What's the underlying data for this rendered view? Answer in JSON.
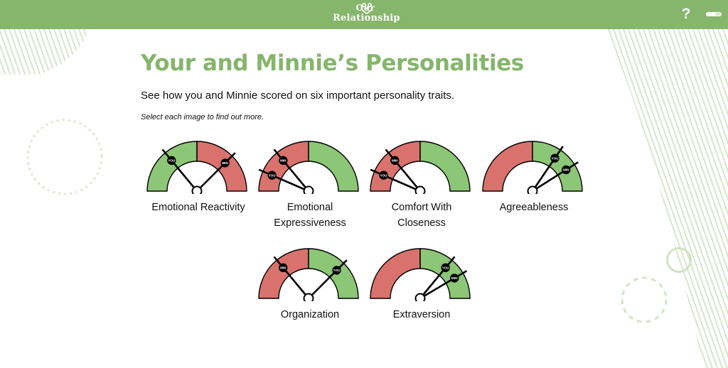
{
  "header": {
    "logo_line1": "Our",
    "logo_line2": "Relationship",
    "help_label": "?",
    "colors": {
      "bar": "#86b56c",
      "text": "#ffffff"
    }
  },
  "page": {
    "title": "Your and Minnie’s Personalities",
    "subtitle": "See how you and Minnie scored on six important personality traits.",
    "hint": "Select each image to find out more."
  },
  "needle_labels": {
    "you": "YOU",
    "partner": "MIN"
  },
  "colors": {
    "red": "#d9726c",
    "green": "#8cc677",
    "outline": "#000000",
    "accent": "#86b56c"
  },
  "gauges": [
    {
      "id": "emotional-reactivity",
      "label_lines": [
        "Emotional Reactivity"
      ],
      "split": 0.5,
      "left_color": "green",
      "right_color": "red",
      "you": 0.28,
      "partner": 0.75
    },
    {
      "id": "emotional-expressiveness",
      "label_lines": [
        "Emotional",
        "Expressiveness"
      ],
      "split": 0.5,
      "left_color": "red",
      "right_color": "green",
      "you": 0.13,
      "partner": 0.28
    },
    {
      "id": "comfort-with-closeness",
      "label_lines": [
        "Comfort With",
        "Closeness"
      ],
      "split": 0.5,
      "left_color": "red",
      "right_color": "green",
      "you": 0.13,
      "partner": 0.28
    },
    {
      "id": "agreeableness",
      "label_lines": [
        "Agreeableness"
      ],
      "split": 0.5,
      "left_color": "red",
      "right_color": "green",
      "you": 0.69,
      "partner": 0.82
    },
    {
      "id": "organization",
      "label_lines": [
        "Organization"
      ],
      "split": 0.5,
      "left_color": "red",
      "right_color": "green",
      "you": 0.75,
      "partner": 0.28
    },
    {
      "id": "extraversion",
      "label_lines": [
        "Extraversion"
      ],
      "split": 0.5,
      "left_color": "red",
      "right_color": "green",
      "you": 0.72,
      "partner": 0.83
    }
  ]
}
